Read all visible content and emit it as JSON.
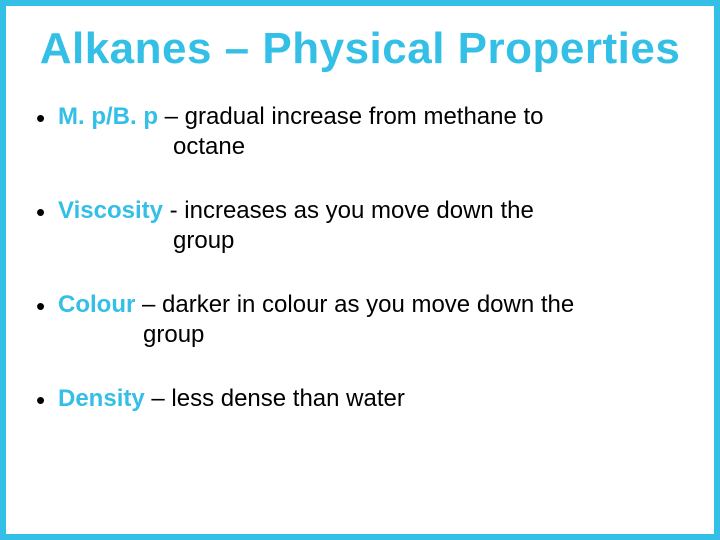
{
  "title": "Alkanes – Physical Properties",
  "accent_color": "#33bfe6",
  "text_color": "#000000",
  "background_color": "#ffffff",
  "border_color": "#33bfe6",
  "border_width": 6,
  "title_fontsize": 44,
  "body_fontsize": 24,
  "font_family": "Comic Sans MS",
  "bullets": [
    {
      "label": "M. p/B. p",
      "desc_line1": " – gradual increase from methane to",
      "desc_line2": "octane"
    },
    {
      "label": "Viscosity",
      "desc_line1": "  - increases as you move down the",
      "desc_line2": "group"
    },
    {
      "label": "Colour",
      "desc_line1": " – darker in colour as you move down the",
      "desc_line2": "group"
    },
    {
      "label": "Density",
      "desc_line1": " – less dense than water",
      "desc_line2": ""
    }
  ]
}
